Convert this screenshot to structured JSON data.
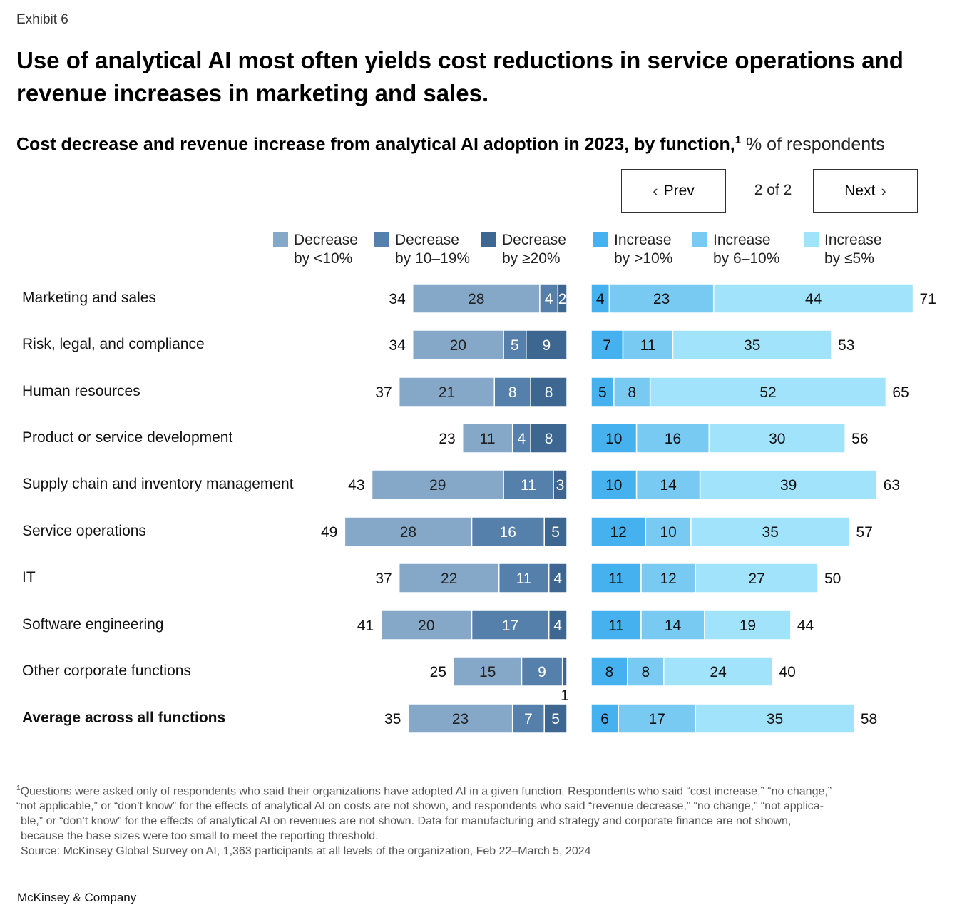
{
  "header": {
    "exhibit": "Exhibit 6",
    "title": "Use of analytical AI most often yields cost reductions in service operations and revenue increases in marketing and sales.",
    "subtitle_bold": "Cost decrease and revenue increase from analytical AI adoption in 2023, by function,",
    "subtitle_footnote_ref": "1",
    "subtitle_unit": " % of respondents"
  },
  "pager": {
    "prev_label": "Prev",
    "next_label": "Next",
    "indicator": "2 of 2"
  },
  "legend": [
    {
      "line1": "Decrease",
      "line2": "by <10%",
      "color": "#86a8c8"
    },
    {
      "line1": "Decrease",
      "line2": "by 10–19%",
      "color": "#5580ab"
    },
    {
      "line1": "Decrease",
      "line2": "by ≥20%",
      "color": "#3d6690"
    },
    {
      "line1": "Increase",
      "line2": "by >10%",
      "color": "#45b1ee"
    },
    {
      "line1": "Increase",
      "line2": "by 6–10%",
      "color": "#78caf3"
    },
    {
      "line1": "Increase",
      "line2": "by ≤5%",
      "color": "#a2e3fc"
    }
  ],
  "chart_data": {
    "type": "bar",
    "subtype": "diverging-stacked-horizontal",
    "title": "Cost decrease and revenue increase from analytical AI adoption in 2023, by function",
    "unit": "% of respondents",
    "categories": [
      "Marketing and sales",
      "Risk, legal, and compliance",
      "Human resources",
      "Product or service development",
      "Supply chain and inventory management",
      "Service operations",
      "IT",
      "Software engineering",
      "Other corporate functions",
      "Average across all functions"
    ],
    "cost_decrease": {
      "series": [
        {
          "name": "Decrease by <10%",
          "color": "#86a8c8",
          "label_color": "#222222",
          "values": [
            28,
            20,
            21,
            11,
            29,
            28,
            22,
            20,
            15,
            23
          ]
        },
        {
          "name": "Decrease by 10–19%",
          "color": "#5580ab",
          "label_color": "#ffffff",
          "values": [
            4,
            5,
            8,
            4,
            11,
            16,
            11,
            17,
            9,
            7
          ]
        },
        {
          "name": "Decrease by ≥20%",
          "color": "#3d6690",
          "label_color": "#ffffff",
          "values": [
            2,
            9,
            8,
            8,
            3,
            5,
            4,
            4,
            1,
            5
          ]
        }
      ],
      "totals": [
        34,
        34,
        37,
        23,
        43,
        49,
        37,
        41,
        25,
        35
      ]
    },
    "revenue_increase": {
      "series": [
        {
          "name": "Increase by >10%",
          "color": "#45b1ee",
          "label_color": "#111111",
          "values": [
            4,
            7,
            5,
            10,
            10,
            12,
            11,
            11,
            8,
            6
          ]
        },
        {
          "name": "Increase by 6–10%",
          "color": "#78caf3",
          "label_color": "#111111",
          "values": [
            23,
            11,
            8,
            16,
            14,
            10,
            12,
            14,
            8,
            17
          ]
        },
        {
          "name": "Increase by ≤5%",
          "color": "#a2e3fc",
          "label_color": "#111111",
          "values": [
            44,
            35,
            52,
            30,
            39,
            35,
            27,
            19,
            24,
            35
          ]
        }
      ],
      "totals": [
        71,
        53,
        65,
        56,
        63,
        57,
        50,
        44,
        40,
        58
      ]
    },
    "bold_categories": [
      "Average across all functions"
    ],
    "outside_labels": [
      {
        "category": "Other corporate functions",
        "series": "Decrease by ≥20%",
        "value": 1,
        "position": "below"
      }
    ],
    "grid": false,
    "legend_position": "top"
  },
  "footnote": {
    "marker": "1",
    "lines": [
      "Questions were asked only of respondents who said their organizations have adopted AI in a given function. Respondents who said “cost increase,” “no change,”",
      "“not applicable,” or “don’t know” for the effects of analytical AI on costs are not shown, and respondents who said “revenue decrease,” “no change,” “not applica-",
      "ble,” or “don’t know” for the effects of analytical AI on revenues are not shown. Data for manufacturing and strategy and corporate finance are not shown,",
      "because the base sizes were too small to meet the reporting threshold."
    ],
    "source": "Source: McKinsey Global Survey on AI, 1,363 participants at all levels of the organization, Feb 22–March 5, 2024"
  },
  "brand": "McKinsey & Company"
}
